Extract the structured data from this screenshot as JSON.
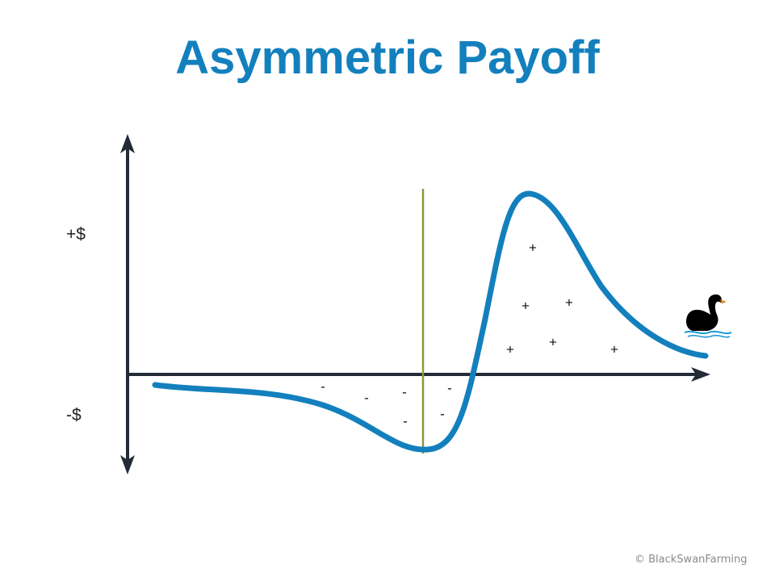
{
  "title": "Asymmetric Payoff",
  "y_axis": {
    "positive_label": "+$",
    "negative_label": "-$"
  },
  "losses": {
    "symbol": "-"
  },
  "gains": {
    "symbol": "+"
  },
  "credit": "© BlackSwanFarming",
  "colors": {
    "title": "#1380bd",
    "curve": "#1380bd",
    "axes": "#222b36",
    "marker_line": "#8a9a3a",
    "swan": "#000000"
  },
  "icons": {
    "swan": "black-swan-icon"
  }
}
